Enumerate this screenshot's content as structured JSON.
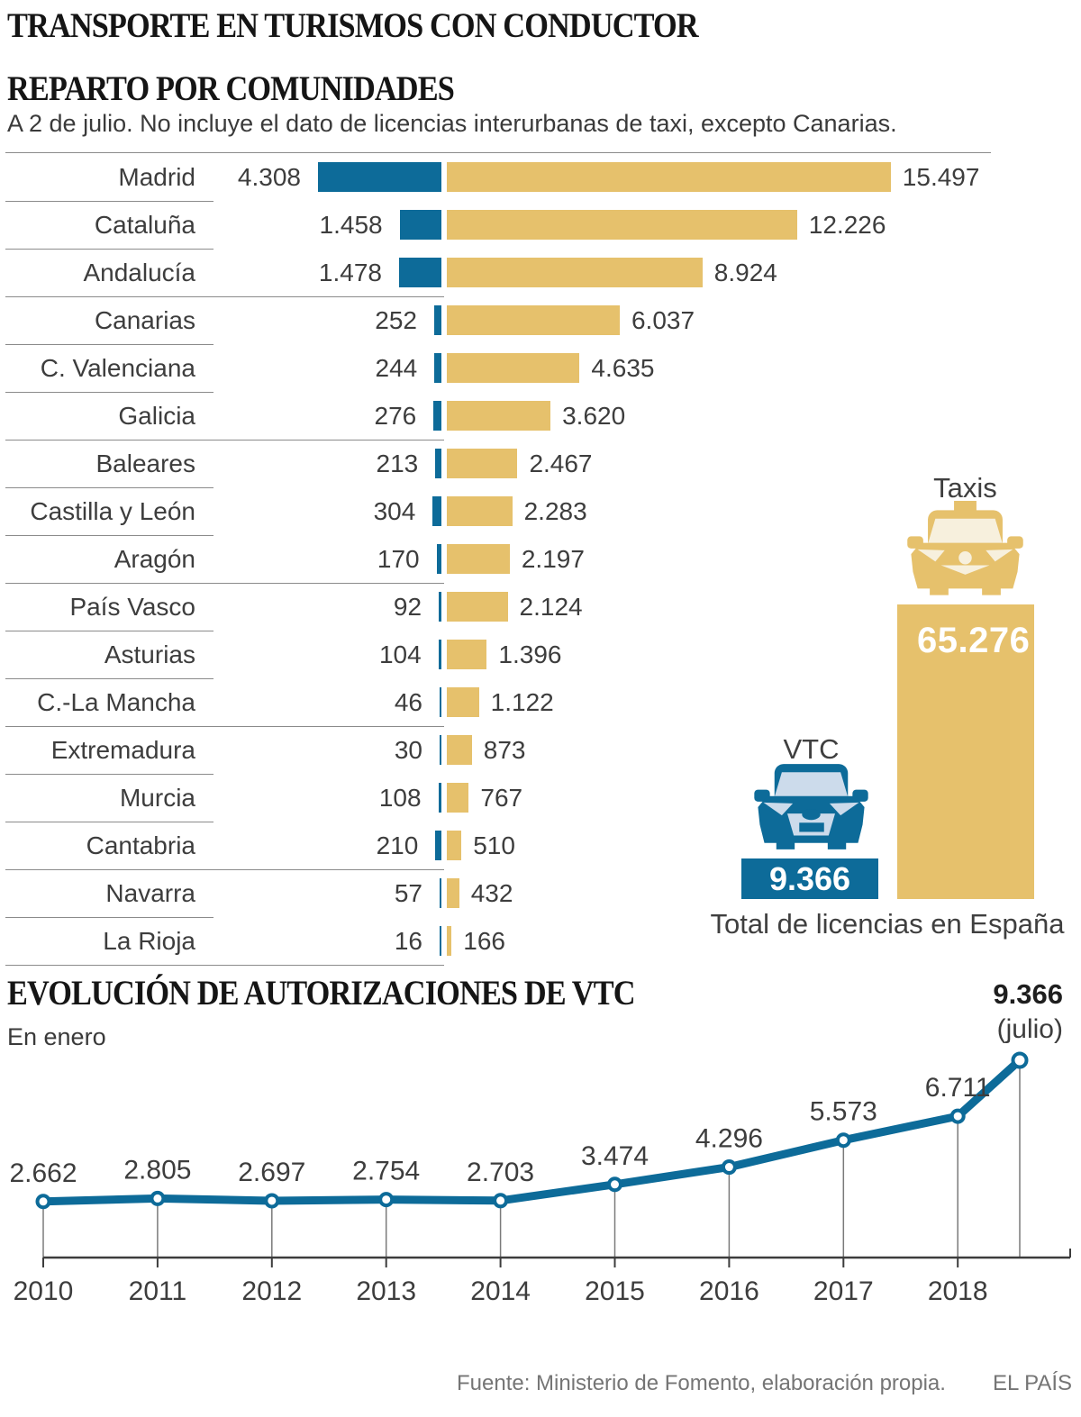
{
  "titles": {
    "main": "TRANSPORTE EN TURISMOS CON CONDUCTOR",
    "section1": "REPARTO POR COMUNIDADES",
    "section1_note": "A 2 de julio. No incluye el dato de licencias interurbanas de taxi, excepto Canarias.",
    "section2": "EVOLUCIÓN DE AUTORIZACIONES DE VTC",
    "section2_note": "En enero"
  },
  "footer": {
    "source": "Fuente: Ministerio de Fomento, elaboración propia.",
    "brand": "EL PAÍS"
  },
  "colors": {
    "vtc_blue": "#0d6b99",
    "taxi_yellow": "#e6c16c"
  },
  "chart_data": [
    {
      "type": "bar",
      "title": "REPARTO POR COMUNIDADES",
      "orientation": "horizontal-diverging",
      "series_names": [
        "VTC",
        "Taxis"
      ],
      "rows": [
        {
          "region": "Madrid",
          "vtc": 4308,
          "vtc_label": "4.308",
          "taxis": 15497,
          "taxis_label": "15.497"
        },
        {
          "region": "Cataluña",
          "vtc": 1458,
          "vtc_label": "1.458",
          "taxis": 12226,
          "taxis_label": "12.226"
        },
        {
          "region": "Andalucía",
          "vtc": 1478,
          "vtc_label": "1.478",
          "taxis": 8924,
          "taxis_label": "8.924"
        },
        {
          "region": "Canarias",
          "vtc": 252,
          "vtc_label": "252",
          "taxis": 6037,
          "taxis_label": "6.037"
        },
        {
          "region": "C. Valenciana",
          "vtc": 244,
          "vtc_label": "244",
          "taxis": 4635,
          "taxis_label": "4.635"
        },
        {
          "region": "Galicia",
          "vtc": 276,
          "vtc_label": "276",
          "taxis": 3620,
          "taxis_label": "3.620"
        },
        {
          "region": "Baleares",
          "vtc": 213,
          "vtc_label": "213",
          "taxis": 2467,
          "taxis_label": "2.467"
        },
        {
          "region": "Castilla y León",
          "vtc": 304,
          "vtc_label": "304",
          "taxis": 2283,
          "taxis_label": "2.283"
        },
        {
          "region": "Aragón",
          "vtc": 170,
          "vtc_label": "170",
          "taxis": 2197,
          "taxis_label": "2.197"
        },
        {
          "region": "País Vasco",
          "vtc": 92,
          "vtc_label": "92",
          "taxis": 2124,
          "taxis_label": "2.124"
        },
        {
          "region": "Asturias",
          "vtc": 104,
          "vtc_label": "104",
          "taxis": 1396,
          "taxis_label": "1.396"
        },
        {
          "region": "C.-La Mancha",
          "vtc": 46,
          "vtc_label": "46",
          "taxis": 1122,
          "taxis_label": "1.122"
        },
        {
          "region": "Extremadura",
          "vtc": 30,
          "vtc_label": "30",
          "taxis": 873,
          "taxis_label": "873"
        },
        {
          "region": "Murcia",
          "vtc": 108,
          "vtc_label": "108",
          "taxis": 767,
          "taxis_label": "767"
        },
        {
          "region": "Cantabria",
          "vtc": 210,
          "vtc_label": "210",
          "taxis": 510,
          "taxis_label": "510"
        },
        {
          "region": "Navarra",
          "vtc": 57,
          "vtc_label": "57",
          "taxis": 432,
          "taxis_label": "432"
        },
        {
          "region": "La Rioja",
          "vtc": 16,
          "vtc_label": "16",
          "taxis": 166,
          "taxis_label": "166"
        }
      ]
    },
    {
      "type": "bar",
      "title": "Total de licencias en España",
      "categories": [
        "VTC",
        "Taxis"
      ],
      "values": [
        9366,
        65276
      ],
      "value_labels": [
        "9.366",
        "65.276"
      ]
    },
    {
      "type": "line",
      "title": "EVOLUCIÓN DE AUTORIZACIONES DE VTC",
      "subtitle": "En enero",
      "x_labels": [
        "2010",
        "2011",
        "2012",
        "2013",
        "2014",
        "2015",
        "2016",
        "2017",
        "2018"
      ],
      "values": [
        2662,
        2805,
        2697,
        2754,
        2703,
        3474,
        4296,
        5573,
        6711,
        9366
      ],
      "value_labels": [
        "2.662",
        "2.805",
        "2.697",
        "2.754",
        "2.703",
        "3.474",
        "4.296",
        "5.573",
        "6.711"
      ],
      "final_label": "9.366",
      "final_sublabel": "(julio)",
      "ylim": [
        0,
        9366
      ],
      "grid": false,
      "legend": false
    }
  ]
}
